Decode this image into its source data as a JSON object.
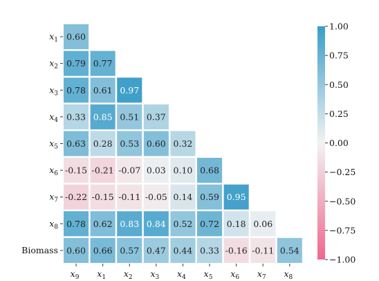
{
  "chart_data": {
    "type": "heatmap",
    "title": "",
    "row_labels": [
      "x1",
      "x2",
      "x3",
      "x4",
      "x5",
      "x6",
      "x7",
      "x8",
      "Biomass"
    ],
    "col_labels": [
      "x9",
      "x1",
      "x2",
      "x3",
      "x4",
      "x5",
      "x6",
      "x7",
      "x8"
    ],
    "label_style": {
      "subscripted_var": "x",
      "non_subscripted": [
        "Biomass"
      ]
    },
    "values": [
      [
        0.6
      ],
      [
        0.79,
        0.77
      ],
      [
        0.78,
        0.61,
        0.97
      ],
      [
        0.33,
        0.85,
        0.51,
        0.37
      ],
      [
        0.63,
        0.28,
        0.53,
        0.6,
        0.32
      ],
      [
        -0.15,
        -0.21,
        -0.07,
        0.03,
        0.1,
        0.68
      ],
      [
        -0.22,
        -0.15,
        -0.11,
        -0.05,
        0.14,
        0.59,
        0.95
      ],
      [
        0.78,
        0.62,
        0.83,
        0.84,
        0.52,
        0.72,
        0.18,
        0.06
      ],
      [
        0.6,
        0.66,
        0.57,
        0.47,
        0.44,
        0.33,
        -0.16,
        -0.11,
        0.54
      ]
    ],
    "value_labels": [
      [
        "0.60"
      ],
      [
        "0.79",
        "0.77"
      ],
      [
        "0.78",
        "0.61",
        "0.97"
      ],
      [
        "0.33",
        "0.85",
        "0.51",
        "0.37"
      ],
      [
        "0.63",
        "0.28",
        "0.53",
        "0.60",
        "0.32"
      ],
      [
        "-0.15",
        "-0.21",
        "-0.07",
        "0.03",
        "0.10",
        "0.68"
      ],
      [
        "-0.22",
        "-0.15",
        "-0.11",
        "-0.05",
        "0.14",
        "0.59",
        "0.95"
      ],
      [
        "0.78",
        "0.62",
        "0.83",
        "0.84",
        "0.52",
        "0.72",
        "0.18",
        "0.06"
      ],
      [
        "0.60",
        "0.66",
        "0.57",
        "0.47",
        "0.44",
        "0.33",
        "-0.16",
        "-0.11",
        "0.54"
      ]
    ],
    "vmin": -1.0,
    "vmax": 1.0,
    "colormap": {
      "negative_end": "#f0678d",
      "center": "#f2f2f2",
      "positive_end": "#3a9dc9"
    },
    "colorbar": {
      "ticks": [
        1.0,
        0.75,
        0.5,
        0.25,
        0.0,
        -0.25,
        -0.5,
        -0.75,
        -1.0
      ],
      "tick_labels": [
        "1.00",
        "0.75",
        "0.50",
        "0.25",
        "0.00",
        "−0.25",
        "−0.50",
        "−0.75",
        "−1.00"
      ],
      "position": "right"
    },
    "lower_triangle_only": true,
    "annotated": true
  }
}
